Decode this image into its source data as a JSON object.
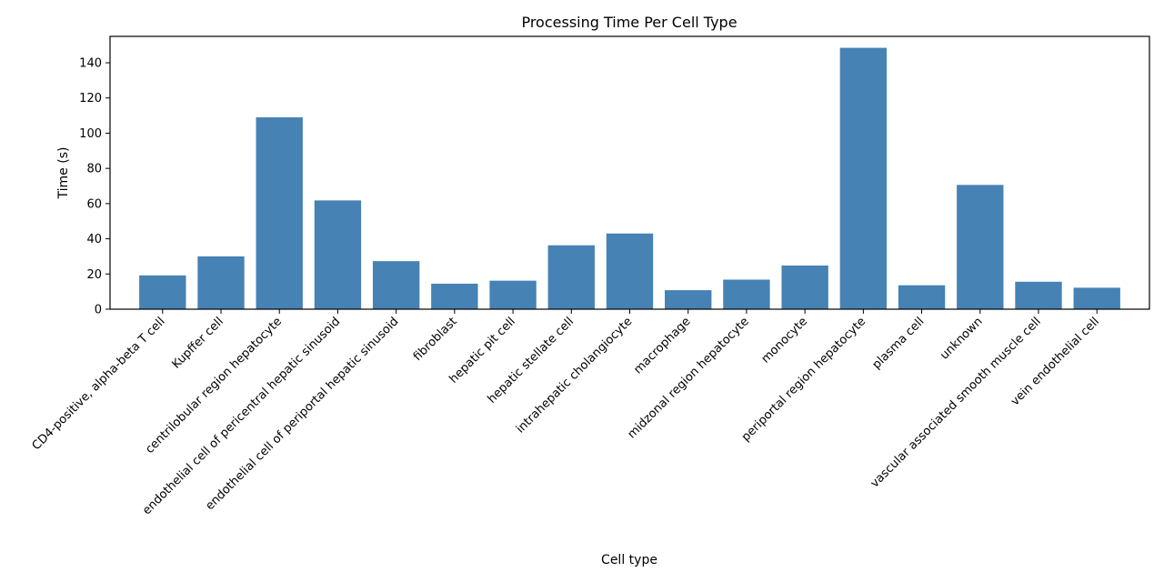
{
  "chart_data": {
    "type": "bar",
    "title": "Processing Time Per Cell Type",
    "xlabel": "Cell type",
    "ylabel": "Time (s)",
    "ylim": [
      0,
      155
    ],
    "yticks": [
      0,
      20,
      40,
      60,
      80,
      100,
      120,
      140
    ],
    "grid": false,
    "bar_color": "#4682b4",
    "categories": [
      "CD4-positive, alpha-beta T cell",
      "Kupffer cell",
      "centrilobular region hepatocyte",
      "endothelial cell of pericentral hepatic sinusoid",
      "endothelial cell of periportal hepatic sinusoid",
      "fibroblast",
      "hepatic pit cell",
      "hepatic stellate cell",
      "intrahepatic cholangiocyte",
      "macrophage",
      "midzonal region hepatocyte",
      "monocyte",
      "periportal region hepatocyte",
      "plasma cell",
      "unknown",
      "vascular associated smooth muscle cell",
      "vein endothelial cell"
    ],
    "values": [
      19.2,
      30.0,
      109.0,
      61.8,
      27.3,
      14.5,
      16.2,
      36.3,
      43.0,
      10.8,
      16.8,
      24.8,
      148.5,
      13.6,
      70.6,
      15.6,
      12.2
    ]
  }
}
